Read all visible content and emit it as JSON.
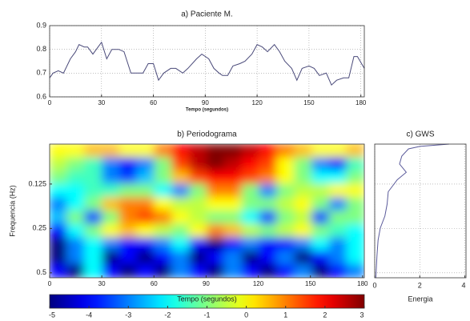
{
  "chart_data": [
    {
      "type": "line",
      "title": "a) Paciente M.",
      "xlabel": "Tempo (segundos)",
      "color": "#4a4a7a",
      "grid": true,
      "x": [
        0,
        2,
        5,
        8,
        12,
        15,
        17,
        20,
        22,
        25,
        28,
        30,
        33,
        36,
        40,
        43,
        47,
        50,
        54,
        57,
        60,
        63,
        66,
        70,
        73,
        77,
        80,
        85,
        88,
        92,
        95,
        98,
        100,
        103,
        106,
        110,
        113,
        117,
        120,
        123,
        126,
        130,
        133,
        136,
        140,
        143,
        146,
        150,
        153,
        156,
        160,
        163,
        166,
        170,
        173,
        176,
        178,
        182
      ],
      "values": [
        0.68,
        0.7,
        0.71,
        0.7,
        0.76,
        0.79,
        0.82,
        0.81,
        0.81,
        0.78,
        0.81,
        0.83,
        0.76,
        0.8,
        0.8,
        0.79,
        0.7,
        0.7,
        0.7,
        0.74,
        0.74,
        0.67,
        0.7,
        0.72,
        0.72,
        0.7,
        0.72,
        0.76,
        0.78,
        0.76,
        0.72,
        0.7,
        0.69,
        0.69,
        0.73,
        0.74,
        0.75,
        0.78,
        0.82,
        0.81,
        0.79,
        0.82,
        0.79,
        0.75,
        0.72,
        0.67,
        0.72,
        0.73,
        0.72,
        0.69,
        0.7,
        0.65,
        0.67,
        0.68,
        0.68,
        0.77,
        0.77,
        0.72
      ],
      "xlim": [
        0,
        182
      ],
      "xticks": [
        0,
        30,
        60,
        90,
        120,
        150,
        180
      ],
      "ylim": [
        0.6,
        0.9
      ],
      "yticks": [
        0.6,
        0.7,
        0.8,
        0.9
      ]
    },
    {
      "type": "heatmap",
      "title": "b) Periodograma",
      "xlabel": "Tempo (segundos)",
      "ylabel": "Frequencia (Hz)",
      "xlim": [
        0,
        181
      ],
      "xticks": [
        0,
        30,
        60,
        90,
        120,
        150,
        180
      ],
      "ylim": [
        0.54,
        0.067
      ],
      "yticks": [
        0.125,
        0.25,
        0.5
      ],
      "log_scale": true,
      "clim": [
        -5,
        3
      ],
      "cticks": [
        -5,
        -4,
        -3,
        -2,
        -1,
        0,
        1,
        2,
        3
      ],
      "colormap": "jet",
      "z": [
        [
          0,
          0,
          0.5,
          0.5,
          0,
          0,
          1,
          2,
          2.5,
          3,
          3,
          2.5,
          2,
          1,
          0.5,
          0,
          0,
          0.5
        ],
        [
          -0.5,
          -1,
          -1.5,
          -3,
          -4,
          -3,
          -1,
          1.5,
          2.5,
          3,
          2.5,
          2,
          1.5,
          0,
          -1,
          -3,
          -4,
          -1.5
        ],
        [
          -1,
          -1.5,
          -1.5,
          -3,
          -3.5,
          -2.5,
          -1,
          0.5,
          1.5,
          2,
          2,
          1.5,
          1,
          0,
          -1,
          -2,
          -2,
          -1
        ],
        [
          -2,
          -2,
          -1.5,
          -1.5,
          -1,
          -1,
          -2,
          -3,
          -1,
          1,
          1,
          -1,
          -3,
          -1,
          -0.5,
          -0.5,
          0,
          0
        ],
        [
          -3,
          -2,
          -1,
          0.5,
          1,
          1,
          0,
          -0.5,
          -0.5,
          0,
          0,
          -1,
          -1,
          -0.5,
          0,
          -1,
          -3,
          -1
        ],
        [
          -2.5,
          -1,
          -3.5,
          -1,
          1,
          1.5,
          1,
          0,
          -0.5,
          -1,
          -1,
          -2,
          -3.5,
          -1,
          -0.5,
          -3.5,
          -1,
          -1
        ],
        [
          -4,
          -2,
          -1,
          0,
          0.5,
          0,
          -0.5,
          -1,
          0,
          1,
          0.5,
          -0.5,
          -1,
          -0.5,
          0,
          -1,
          -1.5,
          -2
        ],
        [
          -5,
          -3,
          -2,
          -3,
          -4,
          -4,
          -3,
          -2,
          -4,
          -5,
          -4,
          -3,
          -4,
          -4,
          -3,
          -2,
          -3,
          -2
        ],
        [
          -5,
          -3,
          -2,
          -5,
          -4,
          -5,
          -4,
          -3,
          -5,
          -4,
          -3,
          -5,
          -4,
          -3,
          -5,
          -4,
          -3,
          -2
        ],
        [
          -4,
          -5,
          -2,
          -4,
          -5,
          -4,
          -5,
          -3,
          -4,
          -5,
          -3,
          -4,
          -5,
          -4,
          -3,
          -5,
          -4,
          -3
        ]
      ]
    },
    {
      "type": "gws",
      "title": "c) GWS",
      "xlabel": "Energia",
      "color": "#5a5a9a",
      "grid": true,
      "x": [
        3.3,
        2,
        1.5,
        1.2,
        1.1,
        1.4,
        1,
        0.6,
        0.55,
        0.45,
        0.25,
        0.15,
        0.1,
        0.05
      ],
      "y": [
        0.067,
        0.0695,
        0.0722,
        0.0808,
        0.0915,
        0.104,
        0.117,
        0.141,
        0.171,
        0.206,
        0.248,
        0.3,
        0.384,
        0.54
      ],
      "xlim": [
        0,
        4.05
      ],
      "xticks": [
        0,
        2,
        4
      ]
    }
  ]
}
